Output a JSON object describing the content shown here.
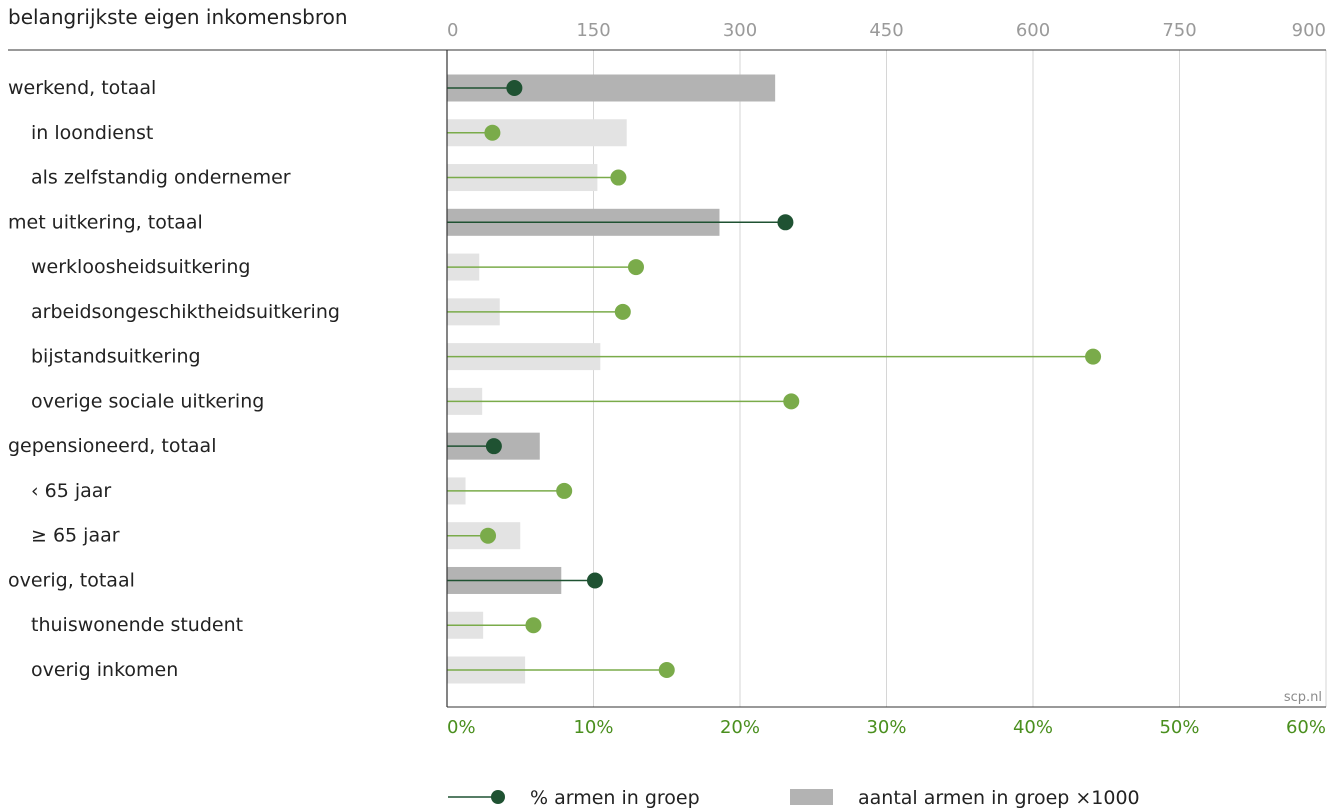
{
  "chart_data": {
    "type": "bar",
    "header": "belangrijkste eigen inkomensbron",
    "categories": [
      "werkend, totaal",
      "in loondienst",
      "als zelfstandig ondernemer",
      "met uitkering, totaal",
      "werkloosheidsuitkering",
      "arbeidsongeschiktheidsuitkering",
      "bijstandsuitkering",
      "overige sociale uitkering",
      "gepensioneerd, totaal",
      "‹ 65 jaar",
      "≥ 65 jaar",
      "overig, totaal",
      "thuiswonende student",
      "overig inkomen"
    ],
    "is_total": [
      true,
      false,
      false,
      true,
      false,
      false,
      false,
      false,
      true,
      false,
      false,
      true,
      false,
      false
    ],
    "series": [
      {
        "name": "aantal armen in groep ×1000",
        "axis": "top",
        "values": [
          336,
          184,
          154,
          279,
          33,
          54,
          157,
          36,
          95,
          19,
          75,
          117,
          37,
          80
        ]
      },
      {
        "name": "% armen in groep",
        "axis": "bottom",
        "values": [
          4.6,
          3.1,
          11.7,
          23.1,
          12.9,
          12.0,
          44.1,
          23.5,
          3.2,
          8.0,
          2.8,
          10.1,
          5.9,
          15.0
        ]
      }
    ],
    "top_axis": {
      "ticks": [
        "0",
        "150",
        "300",
        "450",
        "600",
        "750",
        "900"
      ],
      "range": [
        0,
        900
      ]
    },
    "bottom_axis": {
      "ticks": [
        "0%",
        "10%",
        "20%",
        "30%",
        "40%",
        "50%",
        "60%"
      ],
      "range": [
        0,
        60
      ]
    },
    "grid": true,
    "legend_position": "bottom"
  },
  "source": "scp.nl",
  "colors": {
    "bar_total": "#b3b3b3",
    "bar_sub": "#e3e3e3",
    "dot_total": "#1f5232",
    "dot_sub": "#7aab4a",
    "bottom_tick_text": "#4a8f1e",
    "grid": "#d6d6d6"
  }
}
